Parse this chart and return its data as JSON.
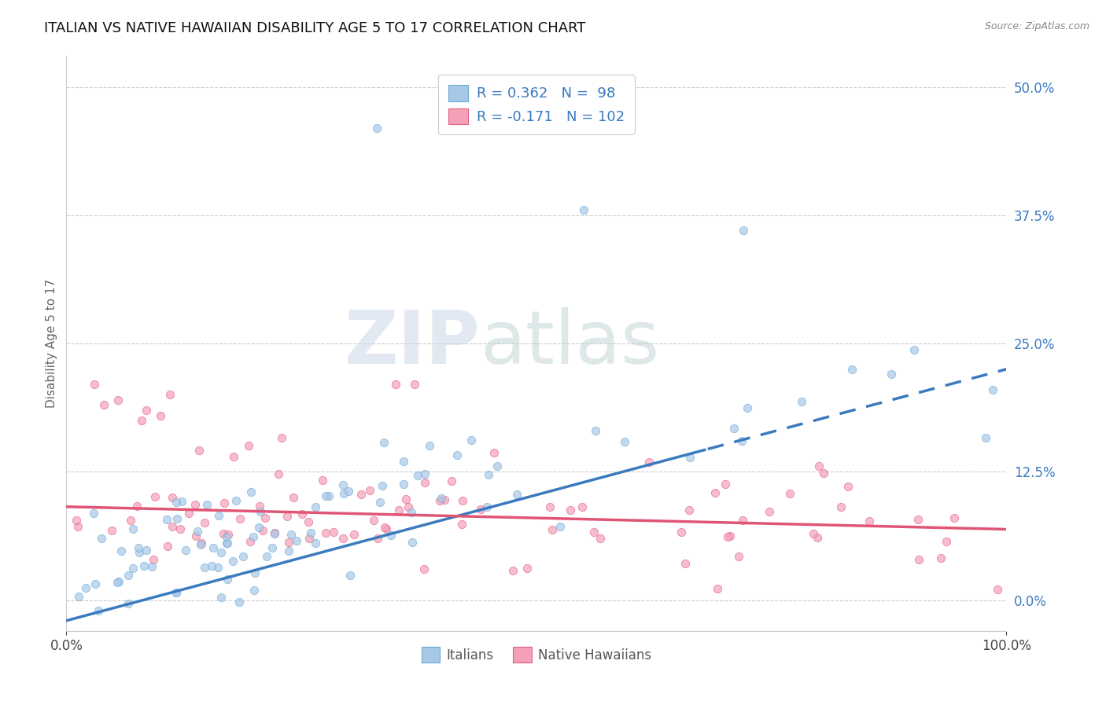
{
  "title": "ITALIAN VS NATIVE HAWAIIAN DISABILITY AGE 5 TO 17 CORRELATION CHART",
  "source_text": "Source: ZipAtlas.com",
  "ylabel": "Disability Age 5 to 17",
  "xlim": [
    0,
    1.0
  ],
  "ylim": [
    -0.03,
    0.53
  ],
  "x_ticks": [
    0.0,
    1.0
  ],
  "x_tick_labels": [
    "0.0%",
    "100.0%"
  ],
  "y_ticks": [
    0.0,
    0.125,
    0.25,
    0.375,
    0.5
  ],
  "y_tick_labels": [
    "0.0%",
    "12.5%",
    "25.0%",
    "37.5%",
    "50.0%"
  ],
  "italian_color": "#a8c8e8",
  "hawaiian_color": "#f4a0b8",
  "italian_edge": "#6aaad4",
  "hawaiian_edge": "#e06080",
  "italian_R": 0.362,
  "italian_N": 98,
  "hawaiian_R": -0.171,
  "hawaiian_N": 102,
  "legend_labels": [
    "Italians",
    "Native Hawaiians"
  ],
  "title_fontsize": 13,
  "axis_label_fontsize": 11,
  "tick_fontsize": 12,
  "watermark_zip": "ZIP",
  "watermark_atlas": "atlas",
  "background_color": "#ffffff",
  "grid_color": "#cccccc",
  "trend_italian_color": "#3a7abf",
  "trend_hawaiian_color": "#e05575",
  "trend_linewidth": 2.5,
  "scatter_size": 55,
  "scatter_alpha": 0.7
}
